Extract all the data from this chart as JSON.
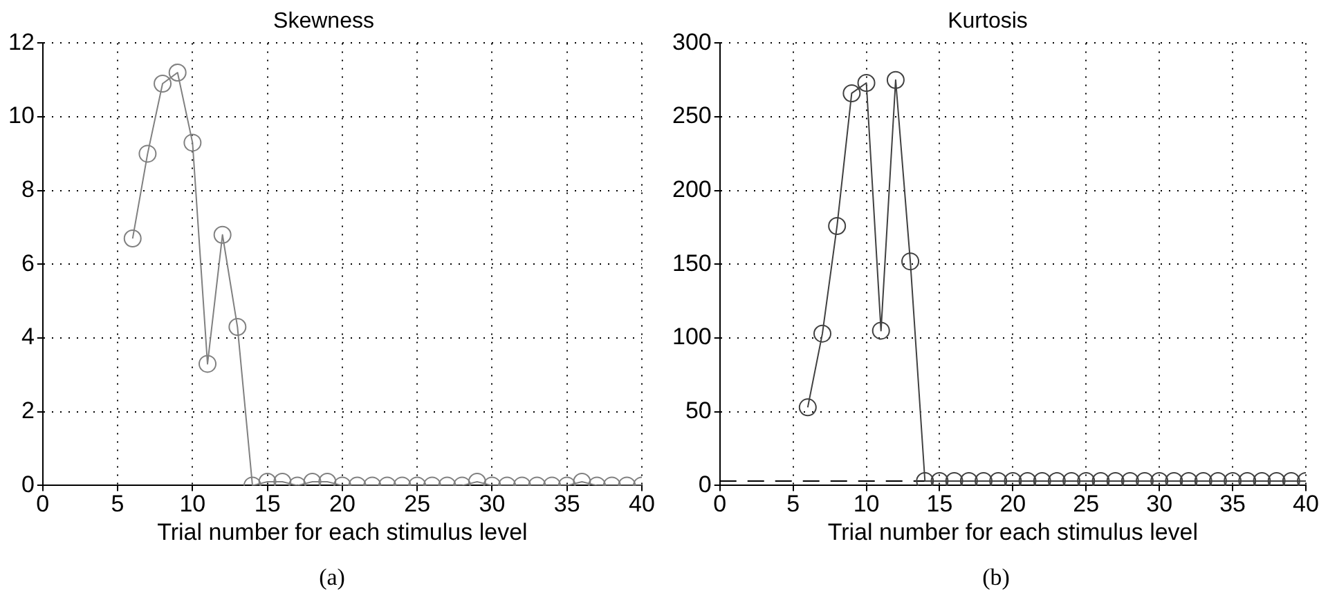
{
  "chart_data": [
    {
      "type": "line",
      "title": "Skewness",
      "xlabel": "Trial number for each stimulus level",
      "annotations": [
        "(a)"
      ],
      "x": [
        6,
        7,
        8,
        9,
        10,
        11,
        12,
        13,
        14,
        15,
        16,
        17,
        18,
        19,
        20,
        21,
        22,
        23,
        24,
        25,
        26,
        27,
        28,
        29,
        30,
        31,
        32,
        33,
        34,
        35,
        36,
        37,
        38,
        39,
        40
      ],
      "series": [
        {
          "color": "#808080",
          "values": [
            6.7,
            9.0,
            10.9,
            11.2,
            9.3,
            3.3,
            6.8,
            4.3,
            0,
            0.1,
            0.1,
            0,
            0.1,
            0.1,
            0,
            0,
            0,
            0,
            0,
            0,
            0,
            0,
            0,
            0.1,
            0,
            0,
            0,
            0,
            0,
            0,
            0.1,
            0,
            0,
            0,
            0
          ]
        }
      ],
      "xlim": [
        0,
        40
      ],
      "xticks": [
        0,
        5,
        10,
        15,
        20,
        25,
        30,
        35,
        40
      ],
      "ylim": [
        0,
        12
      ],
      "yticks": [
        0,
        2,
        4,
        6,
        8,
        10,
        12
      ],
      "grid": true,
      "marker": "circle",
      "line_style": "solid"
    },
    {
      "type": "line",
      "title": "Kurtosis",
      "xlabel": "Trial number for each stimulus level",
      "annotations": [
        "(b)"
      ],
      "x": [
        6,
        7,
        8,
        9,
        10,
        11,
        12,
        13,
        14,
        15,
        16,
        17,
        18,
        19,
        20,
        21,
        22,
        23,
        24,
        25,
        26,
        27,
        28,
        29,
        30,
        31,
        32,
        33,
        34,
        35,
        36,
        37,
        38,
        39,
        40
      ],
      "series": [
        {
          "color": "#404040",
          "values": [
            53,
            103,
            176,
            266,
            273,
            105,
            275,
            152,
            3,
            3,
            3,
            3,
            3,
            3,
            3,
            3,
            3,
            3,
            3,
            3,
            3,
            3,
            3,
            3,
            3,
            3,
            3,
            3,
            3,
            3,
            3,
            3,
            3,
            3,
            3
          ]
        }
      ],
      "xlim": [
        0,
        40
      ],
      "xticks": [
        0,
        5,
        10,
        15,
        20,
        25,
        30,
        35,
        40
      ],
      "ylim": [
        0,
        300
      ],
      "yticks": [
        0,
        50,
        100,
        150,
        200,
        250,
        300
      ],
      "grid": true,
      "marker": "circle",
      "line_style": "solid",
      "ref_lines": [
        {
          "axis": "y",
          "value": 3,
          "color": "#000000",
          "line_style": "dashed"
        }
      ]
    }
  ]
}
